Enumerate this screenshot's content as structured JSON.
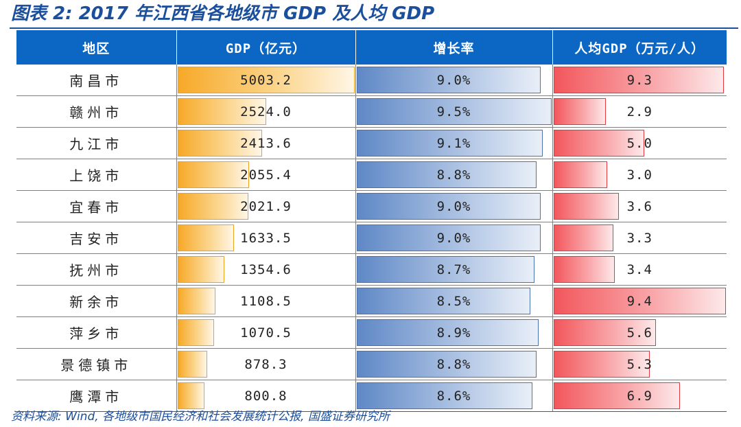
{
  "figure": {
    "title": "图表 2: 2017 年江西省各地级市 GDP 及人均 GDP",
    "source": "资料来源: Wind, 各地级市国民经济和社会发展统计公报, 国盛证券研究所"
  },
  "table": {
    "headers": [
      "地区",
      "GDP（亿元）",
      "增长率",
      "人均GDP（万元/人）"
    ],
    "rows": [
      {
        "region": "南昌市",
        "gdp": "5003.2",
        "growth": "9.0%",
        "per_capita": "9.3"
      },
      {
        "region": "赣州市",
        "gdp": "2524.0",
        "growth": "9.5%",
        "per_capita": "2.9"
      },
      {
        "region": "九江市",
        "gdp": "2413.6",
        "growth": "9.1%",
        "per_capita": "5.0"
      },
      {
        "region": "上饶市",
        "gdp": "2055.4",
        "growth": "8.8%",
        "per_capita": "3.0"
      },
      {
        "region": "宜春市",
        "gdp": "2021.9",
        "growth": "9.0%",
        "per_capita": "3.6"
      },
      {
        "region": "吉安市",
        "gdp": "1633.5",
        "growth": "9.0%",
        "per_capita": "3.3"
      },
      {
        "region": "抚州市",
        "gdp": "1354.6",
        "growth": "8.7%",
        "per_capita": "3.4"
      },
      {
        "region": "新余市",
        "gdp": "1108.5",
        "growth": "8.5%",
        "per_capita": "9.4"
      },
      {
        "region": "萍乡市",
        "gdp": "1070.5",
        "growth": "8.9%",
        "per_capita": "5.6"
      },
      {
        "region": "景德镇市",
        "gdp": "878.3",
        "growth": "8.8%",
        "per_capita": "5.3"
      },
      {
        "region": "鹰潭市",
        "gdp": "800.8",
        "growth": "8.6%",
        "per_capita": "6.9"
      }
    ]
  },
  "colors": {
    "header_bg": "#0b66c4",
    "title": "#1b4f9c",
    "gdp_bar": "#f7a928",
    "growth_bar": "#5f88c6",
    "per_capita_bar": "#f2575c"
  }
}
